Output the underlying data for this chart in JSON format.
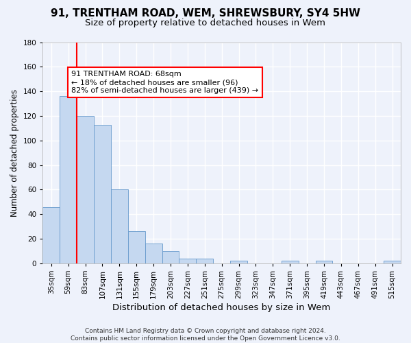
{
  "title1": "91, TRENTHAM ROAD, WEM, SHREWSBURY, SY4 5HW",
  "title2": "Size of property relative to detached houses in Wem",
  "xlabel": "Distribution of detached houses by size in Wem",
  "ylabel": "Number of detached properties",
  "categories": [
    "35sqm",
    "59sqm",
    "83sqm",
    "107sqm",
    "131sqm",
    "155sqm",
    "179sqm",
    "203sqm",
    "227sqm",
    "251sqm",
    "275sqm",
    "299sqm",
    "323sqm",
    "347sqm",
    "371sqm",
    "395sqm",
    "419sqm",
    "443sqm",
    "467sqm",
    "491sqm",
    "515sqm"
  ],
  "values": [
    46,
    136,
    120,
    113,
    60,
    26,
    16,
    10,
    4,
    4,
    0,
    2,
    0,
    0,
    2,
    0,
    2,
    0,
    0,
    0,
    2
  ],
  "bar_color": "#c5d8f0",
  "bar_edge_color": "#6699cc",
  "bar_width": 1.0,
  "ylim": [
    0,
    180
  ],
  "yticks": [
    0,
    20,
    40,
    60,
    80,
    100,
    120,
    140,
    160,
    180
  ],
  "property_line_x": 1.5,
  "property_line_color": "red",
  "annotation_text": "91 TRENTHAM ROAD: 68sqm\n← 18% of detached houses are smaller (96)\n82% of semi-detached houses are larger (439) →",
  "annotation_box_color": "white",
  "annotation_box_edge_color": "red",
  "footnote": "Contains HM Land Registry data © Crown copyright and database right 2024.\nContains public sector information licensed under the Open Government Licence v3.0.",
  "bg_color": "#eef2fb",
  "grid_color": "white",
  "title1_fontsize": 11,
  "title2_fontsize": 9.5,
  "xlabel_fontsize": 9.5,
  "ylabel_fontsize": 8.5,
  "tick_fontsize": 7.5,
  "footnote_fontsize": 6.5
}
